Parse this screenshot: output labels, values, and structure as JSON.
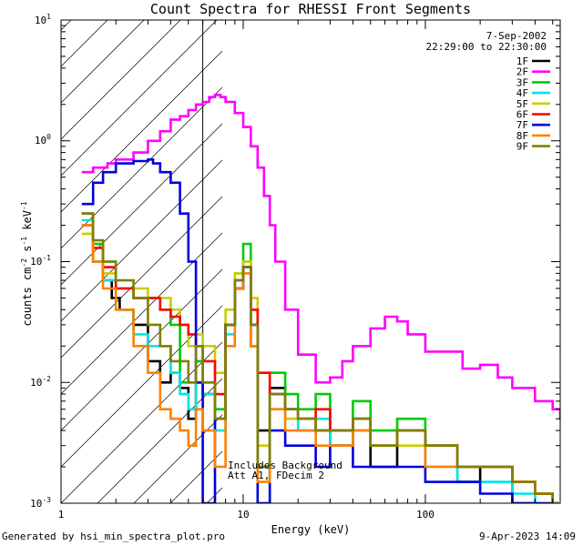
{
  "chart_data": {
    "type": "line",
    "title": "Count Spectra for RHESSI Front Segments",
    "xlabel": "Energy (keV)",
    "ylabel": "counts cm^-2 s^-1 keV^-1",
    "xscale": "log",
    "yscale": "log",
    "xlim": [
      1,
      550
    ],
    "ylim": [
      0.001,
      10
    ],
    "x_tick_labels": [
      "1",
      "10",
      "100"
    ],
    "y_tick_labels": [
      "10^-3",
      "10^-2",
      "10^-1",
      "10^0",
      "10^1"
    ],
    "date": "7-Sep-2002",
    "time_range": "22:29:00 to 22:30:00",
    "annotation_line1": "Includes Background",
    "annotation_line2": "Att A1, FDecim 2",
    "attenuator_region_keV": [
      1,
      6
    ],
    "legend_position": "top-right",
    "series": [
      {
        "name": "1F",
        "color": "#000000",
        "x": [
          1.3,
          1.5,
          1.7,
          1.9,
          2.1,
          2.5,
          3,
          3.5,
          4,
          4.5,
          5,
          5.5,
          6,
          7,
          8,
          9,
          10,
          11,
          12,
          14,
          17,
          20,
          25,
          30,
          40,
          50,
          70,
          100,
          150,
          200,
          300,
          400,
          500
        ],
        "y": [
          0.25,
          0.1,
          0.07,
          0.05,
          0.04,
          0.03,
          0.015,
          0.01,
          0.012,
          0.009,
          0.005,
          0.01,
          0.008,
          0.005,
          0.03,
          0.06,
          0.09,
          0.02,
          0.004,
          0.009,
          0.006,
          0.005,
          0.004,
          0.003,
          0.005,
          0.002,
          0.004,
          0.003,
          0.0015,
          0.002,
          0.001,
          0.0012,
          0.001
        ]
      },
      {
        "name": "2F",
        "color": "#ff00ff",
        "x": [
          1.3,
          1.5,
          1.8,
          2,
          2.5,
          3,
          3.5,
          4,
          4.5,
          5,
          5.5,
          6,
          6.5,
          7,
          7.5,
          8,
          9,
          10,
          11,
          12,
          13,
          14,
          15,
          17,
          20,
          25,
          30,
          35,
          40,
          50,
          60,
          70,
          80,
          100,
          130,
          160,
          200,
          250,
          300,
          400,
          500,
          550
        ],
        "y": [
          0.55,
          0.6,
          0.65,
          0.7,
          0.8,
          1.0,
          1.2,
          1.5,
          1.6,
          1.8,
          2.0,
          2.1,
          2.3,
          2.4,
          2.3,
          2.1,
          1.7,
          1.3,
          0.9,
          0.6,
          0.35,
          0.2,
          0.1,
          0.04,
          0.017,
          0.01,
          0.011,
          0.015,
          0.02,
          0.028,
          0.035,
          0.032,
          0.025,
          0.018,
          0.018,
          0.013,
          0.014,
          0.011,
          0.009,
          0.007,
          0.006,
          0.005
        ]
      },
      {
        "name": "3F",
        "color": "#00cc00",
        "x": [
          1.3,
          1.5,
          1.7,
          2,
          2.5,
          3,
          3.5,
          4,
          4.5,
          5,
          5.5,
          6,
          7,
          8,
          9,
          10,
          11,
          12,
          14,
          17,
          20,
          25,
          30,
          40,
          50,
          70,
          100,
          150,
          200,
          300,
          400,
          500
        ],
        "y": [
          0.25,
          0.14,
          0.1,
          0.06,
          0.05,
          0.05,
          0.04,
          0.03,
          0.01,
          0.01,
          0.015,
          0.01,
          0.006,
          0.03,
          0.08,
          0.14,
          0.04,
          0.001,
          0.012,
          0.008,
          0.006,
          0.008,
          0.004,
          0.007,
          0.004,
          0.005,
          0.003,
          0.002,
          0.002,
          0.0015,
          0.0012,
          0.001
        ]
      },
      {
        "name": "4F",
        "color": "#00e5e5",
        "x": [
          1.3,
          1.5,
          1.7,
          2,
          2.5,
          3,
          3.5,
          4,
          4.5,
          5,
          5.5,
          6,
          7,
          8,
          9,
          10,
          11,
          12,
          14,
          17,
          20,
          25,
          30,
          40,
          50,
          70,
          100,
          150,
          200,
          300,
          400,
          500
        ],
        "y": [
          0.22,
          0.1,
          0.07,
          0.04,
          0.025,
          0.02,
          0.02,
          0.012,
          0.008,
          0.006,
          0.01,
          0.008,
          0.004,
          0.025,
          0.07,
          0.1,
          0.03,
          0.002,
          0.008,
          0.006,
          0.004,
          0.005,
          0.003,
          0.004,
          0.003,
          0.004,
          0.002,
          0.0015,
          0.0015,
          0.0012,
          0.001,
          0.001
        ]
      },
      {
        "name": "5F",
        "color": "#cccc00",
        "x": [
          1.3,
          1.5,
          1.7,
          2,
          2.5,
          3,
          3.5,
          4,
          4.5,
          5,
          5.5,
          6,
          7,
          8,
          9,
          10,
          11,
          12,
          14,
          17,
          20,
          25,
          30,
          40,
          50,
          70,
          100,
          150,
          200,
          300,
          400,
          500
        ],
        "y": [
          0.17,
          0.1,
          0.08,
          0.06,
          0.06,
          0.05,
          0.05,
          0.04,
          0.03,
          0.02,
          0.025,
          0.02,
          0.012,
          0.04,
          0.08,
          0.1,
          0.05,
          0.003,
          0.006,
          0.005,
          0.005,
          0.004,
          0.004,
          0.004,
          0.003,
          0.003,
          0.003,
          0.002,
          0.002,
          0.0015,
          0.0012,
          0.001
        ]
      },
      {
        "name": "6F",
        "color": "#ff0000",
        "x": [
          1.3,
          1.5,
          1.7,
          2,
          2.5,
          3,
          3.5,
          4,
          4.5,
          5,
          5.5,
          6,
          7,
          8,
          9,
          10,
          11,
          12,
          14,
          17,
          20,
          25,
          30,
          40,
          50,
          70,
          100,
          150,
          200,
          300,
          400,
          500
        ],
        "y": [
          0.2,
          0.13,
          0.09,
          0.06,
          0.05,
          0.05,
          0.04,
          0.035,
          0.03,
          0.025,
          0.02,
          0.015,
          0.008,
          0.03,
          0.07,
          0.09,
          0.04,
          0.012,
          0.008,
          0.006,
          0.005,
          0.006,
          0.004,
          0.005,
          0.003,
          0.004,
          0.003,
          0.002,
          0.002,
          0.0015,
          0.0012,
          0.001
        ]
      },
      {
        "name": "7F",
        "color": "#0000dd",
        "x": [
          1.3,
          1.5,
          1.7,
          2,
          2.5,
          3,
          3.2,
          3.5,
          4,
          4.5,
          5,
          5.5,
          6,
          7,
          8,
          9,
          10,
          11,
          12,
          14,
          17,
          20,
          25,
          30,
          40,
          50,
          70,
          100,
          150,
          200,
          300,
          400,
          500
        ],
        "y": [
          0.3,
          0.45,
          0.55,
          0.65,
          0.68,
          0.7,
          0.65,
          0.55,
          0.45,
          0.25,
          0.1,
          0.01,
          0.001,
          0.005,
          0.03,
          0.06,
          0.09,
          0.03,
          0.001,
          0.004,
          0.003,
          0.003,
          0.002,
          0.003,
          0.002,
          0.002,
          0.002,
          0.0015,
          0.0015,
          0.0012,
          0.001,
          0.001,
          0.001
        ]
      },
      {
        "name": "8F",
        "color": "#ff8000",
        "x": [
          1.3,
          1.5,
          1.7,
          2,
          2.5,
          3,
          3.5,
          4,
          4.5,
          5,
          5.5,
          6,
          7,
          8,
          9,
          10,
          11,
          12,
          14,
          17,
          20,
          25,
          30,
          40,
          50,
          70,
          100,
          150,
          200,
          300,
          400,
          500
        ],
        "y": [
          0.2,
          0.1,
          0.06,
          0.04,
          0.02,
          0.012,
          0.006,
          0.005,
          0.004,
          0.003,
          0.006,
          0.004,
          0.002,
          0.02,
          0.06,
          0.08,
          0.02,
          0.0015,
          0.006,
          0.004,
          0.004,
          0.003,
          0.003,
          0.004,
          0.003,
          0.004,
          0.002,
          0.002,
          0.002,
          0.0015,
          0.0012,
          0.001
        ]
      },
      {
        "name": "9F",
        "color": "#808000",
        "x": [
          1.3,
          1.5,
          1.7,
          2,
          2.5,
          3,
          3.5,
          4,
          4.5,
          5,
          5.5,
          6,
          7,
          8,
          9,
          10,
          11,
          12,
          14,
          17,
          20,
          25,
          30,
          40,
          50,
          70,
          100,
          150,
          200,
          300,
          400,
          500
        ],
        "y": [
          0.25,
          0.15,
          0.1,
          0.07,
          0.05,
          0.03,
          0.02,
          0.015,
          0.015,
          0.01,
          0.02,
          0.01,
          0.005,
          0.03,
          0.07,
          0.09,
          0.03,
          0.002,
          0.008,
          0.006,
          0.005,
          0.004,
          0.004,
          0.005,
          0.003,
          0.004,
          0.003,
          0.002,
          0.002,
          0.0015,
          0.0012,
          0.001
        ]
      }
    ]
  },
  "footer": {
    "generated_by": "Generated by hsi_min_spectra_plot.pro",
    "timestamp": "9-Apr-2023 14:09"
  }
}
